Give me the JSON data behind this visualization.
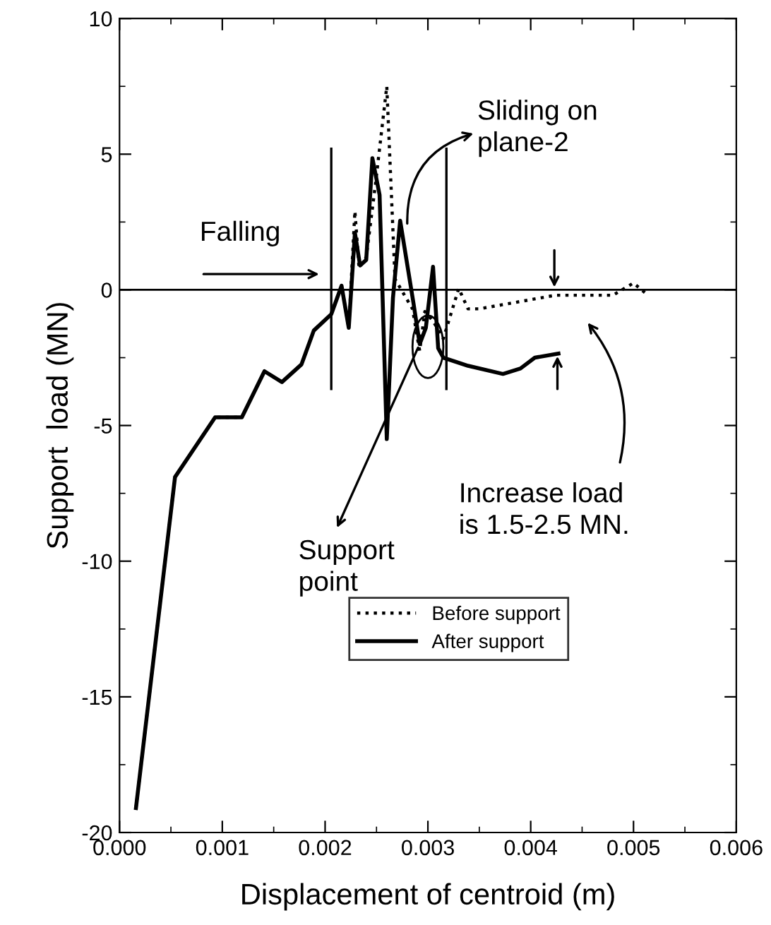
{
  "chart_data": {
    "type": "line",
    "xlabel": "Displacement of centroid (m)",
    "ylabel": "Support  load (MN)",
    "xlim": [
      0,
      0.006
    ],
    "ylim": [
      -20,
      10
    ],
    "xticks": [
      {
        "value": 0,
        "label": "0.000"
      },
      {
        "value": 0.001,
        "label": "0.001"
      },
      {
        "value": 0.002,
        "label": "0.002"
      },
      {
        "value": 0.003,
        "label": "0.003"
      },
      {
        "value": 0.004,
        "label": "0.004"
      },
      {
        "value": 0.005,
        "label": "0.005"
      },
      {
        "value": 0.006,
        "label": "0.006"
      }
    ],
    "yticks": [
      -20,
      -15,
      -10,
      -5,
      0,
      5,
      10
    ],
    "grid": false,
    "legend": "bottom",
    "marker": "none",
    "series": [
      {
        "name": "Before support",
        "color": "#000000",
        "line_style": "dotted",
        "x": [
          0.00016,
          0.00054,
          0.00093,
          0.00119,
          0.00141,
          0.00158,
          0.00177,
          0.00189,
          0.00206,
          0.00216,
          0.00223,
          0.00229,
          0.00233,
          0.0024,
          0.00249,
          0.0026,
          0.00268,
          0.00285,
          0.00292,
          0.00297,
          0.00305,
          0.00315,
          0.0033,
          0.00339,
          0.0035,
          0.00424,
          0.0048,
          0.005,
          0.00511
        ],
        "values": [
          -19.1,
          -6.9,
          -4.7,
          -4.7,
          -3.0,
          -3.4,
          -2.75,
          -1.5,
          -0.9,
          0.15,
          -1.4,
          2.9,
          0.8,
          1.2,
          3.9,
          7.5,
          0.4,
          -0.7,
          -2.25,
          -0.8,
          -1.15,
          -1.8,
          0.05,
          -0.7,
          -0.7,
          -0.2,
          -0.2,
          0.25,
          -0.1
        ]
      },
      {
        "name": "After support",
        "color": "#000000",
        "line_style": "solid",
        "x": [
          0.00016,
          0.00054,
          0.00093,
          0.00119,
          0.00141,
          0.00158,
          0.00177,
          0.00189,
          0.00206,
          0.00216,
          0.00223,
          0.00229,
          0.00234,
          0.0024,
          0.00246,
          0.00253,
          0.0026,
          0.00266,
          0.00273,
          0.00286,
          0.00292,
          0.00298,
          0.00305,
          0.0031,
          0.00315,
          0.00339,
          0.00373,
          0.0039,
          0.00404,
          0.00427
        ],
        "values": [
          -19.1,
          -6.9,
          -4.7,
          -4.7,
          -3.0,
          -3.4,
          -2.75,
          -1.5,
          -0.9,
          0.15,
          -1.4,
          2.1,
          0.9,
          1.1,
          4.85,
          3.5,
          -5.5,
          -0.3,
          2.55,
          -0.5,
          -2.0,
          -1.4,
          0.85,
          -2.15,
          -2.5,
          -2.8,
          -3.1,
          -2.9,
          -2.5,
          -2.35
        ]
      }
    ],
    "ref_lines": [
      {
        "axis": "y",
        "value": 0,
        "color": "#000000"
      },
      {
        "axis": "x",
        "value": 0.00206,
        "color": "#000000"
      },
      {
        "axis": "x",
        "value": 0.00318,
        "color": "#000000"
      }
    ],
    "annotations": [
      "Falling",
      {
        "text": "Sliding on\nplane-2",
        "x": 0.0028,
        "y": 2.3
      },
      {
        "text": "Support\npoint",
        "x": 0.00292,
        "y": -2.0
      },
      "Increase load\nis 1.5-2.5 MN."
    ]
  }
}
